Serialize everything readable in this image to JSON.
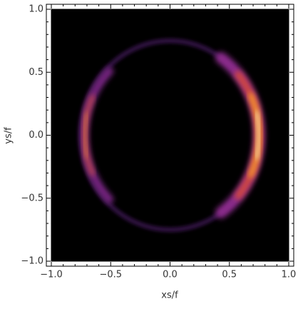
{
  "chart_data": {
    "type": "density",
    "x_label": "xs/f",
    "y_label": "ys/f",
    "xlim": [
      -1,
      1
    ],
    "ylim": [
      -1,
      1
    ],
    "xticks": [
      {
        "value": -1,
        "label": "−1.0"
      },
      {
        "value": -0.5,
        "label": "−0.5"
      },
      {
        "value": 0,
        "label": "0.0"
      },
      0.5,
      {
        "value": 1,
        "label": "1.0"
      }
    ],
    "yticks": [
      {
        "value": -1,
        "label": "−1.0"
      },
      {
        "value": -0.5,
        "label": "−0.5"
      },
      {
        "value": 0,
        "label": "0.0"
      },
      0.5,
      {
        "value": 1,
        "label": "1.0"
      }
    ]
  }
}
